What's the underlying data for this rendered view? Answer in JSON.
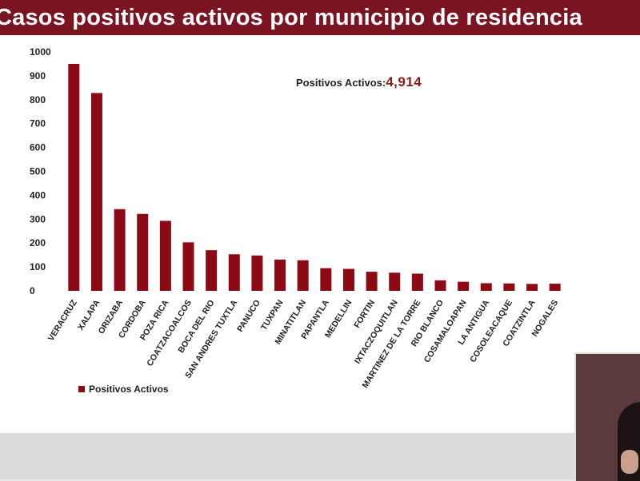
{
  "header": {
    "title": "Casos positivos activos por municipio de residencia"
  },
  "summary": {
    "label": "Positivos Activos:",
    "value": "4,914"
  },
  "colors": {
    "bar": "#8b0a14",
    "title_bar": "#7a1420",
    "total_value": "#8b1a1a"
  },
  "chart_data": {
    "type": "bar",
    "categories": [
      "VERACRUZ",
      "XALAPA",
      "ORIZABA",
      "CORDOBA",
      "POZA RICA",
      "COATZACOALCOS",
      "BOCA DEL RIO",
      "SAN ANDRES TUXTLA",
      "PANUCO",
      "TUXPAN",
      "MINATITLAN",
      "PAPANTLA",
      "MEDELLIN",
      "FORTIN",
      "IXTACZOQUITLAN",
      "MARTINEZ DE LA TORRE",
      "RIO BLANCO",
      "COSAMALOAPAN",
      "LA ANTIGUA",
      "COSOLEACAQUE",
      "COATZINTLA",
      "NOGALES"
    ],
    "series": [
      {
        "name": "Positivos Activos",
        "values": [
          950,
          828,
          342,
          322,
          293,
          203,
          170,
          153,
          148,
          131,
          128,
          95,
          92,
          80,
          76,
          72,
          44,
          38,
          32,
          31,
          29,
          30
        ]
      }
    ],
    "yticks": [
      "0",
      "100",
      "200",
      "300",
      "400",
      "500",
      "600",
      "700",
      "800",
      "900",
      "1000"
    ],
    "ylim": [
      0,
      1000
    ],
    "grid": false,
    "legend": "bottom-left",
    "title": "",
    "xlabel": "",
    "ylabel": ""
  }
}
